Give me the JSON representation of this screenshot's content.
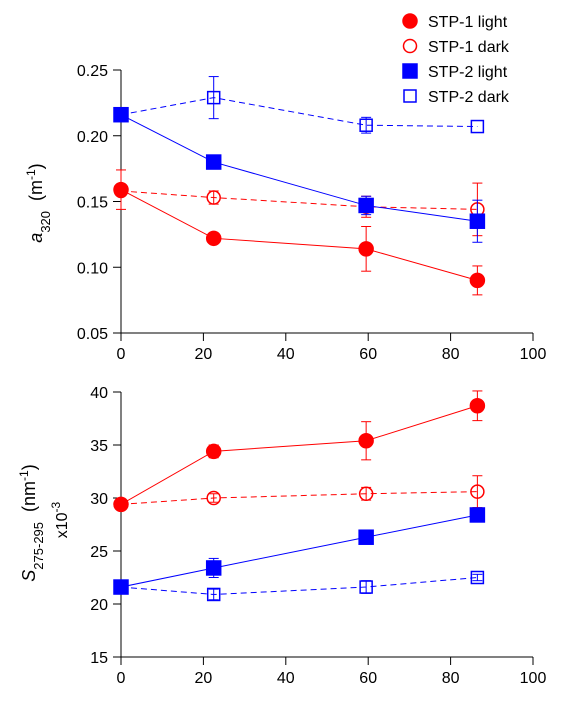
{
  "chart_data": [
    {
      "type": "line",
      "title": "",
      "xlabel": "",
      "ylabel": {
        "main": "a",
        "sub": "320",
        "unit_open": "  (m",
        "unit_sup": "-1",
        "unit_close": ")"
      },
      "xlim": [
        0,
        100
      ],
      "ylim": [
        0.05,
        0.25
      ],
      "xticks": [
        0,
        20,
        40,
        60,
        80,
        100
      ],
      "xtick_labels": [
        "0",
        "20",
        "40",
        "60",
        "80",
        "100"
      ],
      "yticks": [
        0.05,
        0.1,
        0.15,
        0.2,
        0.25
      ],
      "ytick_labels": [
        "0.05",
        "0.10",
        "0.15",
        "0.20",
        "0.25"
      ],
      "grid": false,
      "series": [
        {
          "name": "STP-1 light",
          "color": "#ff0000",
          "marker": "circle",
          "filled": true,
          "dashed": false,
          "x": [
            0,
            22.5,
            59.5,
            86.5
          ],
          "y": [
            0.159,
            0.122,
            0.114,
            0.09
          ],
          "err": [
            0.015,
            0.0,
            0.017,
            0.011
          ]
        },
        {
          "name": "STP-1 dark",
          "color": "#ff0000",
          "marker": "circle",
          "filled": false,
          "dashed": true,
          "x": [
            0,
            22.5,
            59.5,
            86.5
          ],
          "y": [
            0.158,
            0.153,
            0.146,
            0.144
          ],
          "err": [
            0.0,
            0.005,
            0.008,
            0.02
          ]
        },
        {
          "name": "STP-2 light",
          "color": "#0000ff",
          "marker": "square",
          "filled": true,
          "dashed": false,
          "x": [
            0,
            22.5,
            59.5,
            86.5
          ],
          "y": [
            0.216,
            0.18,
            0.147,
            0.135
          ],
          "err": [
            0.0,
            0.0,
            0.007,
            0.016
          ]
        },
        {
          "name": "STP-2 dark",
          "color": "#0000ff",
          "marker": "square",
          "filled": false,
          "dashed": true,
          "x": [
            0,
            22.5,
            59.5,
            86.5
          ],
          "y": [
            0.216,
            0.229,
            0.208,
            0.207
          ],
          "err": [
            0.0,
            0.016,
            0.006,
            0.0
          ]
        }
      ]
    },
    {
      "type": "line",
      "title": "",
      "xlabel": "",
      "ylabel": {
        "main": "S",
        "sub": "275-295",
        "unit_open": "  (nm",
        "unit_sup": "-1",
        "unit_close": ")",
        "multiplier": "x10",
        "multiplier_sup": "-3"
      },
      "xlim": [
        0,
        100
      ],
      "ylim": [
        15,
        40
      ],
      "xticks": [
        0,
        20,
        40,
        60,
        80,
        100
      ],
      "xtick_labels": [
        "0",
        "20",
        "40",
        "60",
        "80",
        "100"
      ],
      "yticks": [
        15,
        20,
        25,
        30,
        35,
        40
      ],
      "ytick_labels": [
        "15",
        "20",
        "25",
        "30",
        "35",
        "40"
      ],
      "grid": false,
      "series": [
        {
          "name": "STP-1 light",
          "color": "#ff0000",
          "marker": "circle",
          "filled": true,
          "dashed": false,
          "x": [
            0,
            22.5,
            59.5,
            86.5
          ],
          "y": [
            29.4,
            34.4,
            35.4,
            38.7
          ],
          "err": [
            0.5,
            0.6,
            1.8,
            1.4
          ]
        },
        {
          "name": "STP-1 dark",
          "color": "#ff0000",
          "marker": "circle",
          "filled": false,
          "dashed": true,
          "x": [
            0,
            22.5,
            59.5,
            86.5
          ],
          "y": [
            29.4,
            30.0,
            30.4,
            30.6
          ],
          "err": [
            0.0,
            0.4,
            0.6,
            1.5
          ]
        },
        {
          "name": "STP-2 light",
          "color": "#0000ff",
          "marker": "square",
          "filled": true,
          "dashed": false,
          "x": [
            0,
            22.5,
            59.5,
            86.5
          ],
          "y": [
            21.6,
            23.4,
            26.3,
            28.4
          ],
          "err": [
            0.0,
            0.9,
            0.0,
            0.0
          ]
        },
        {
          "name": "STP-2 dark",
          "color": "#0000ff",
          "marker": "square",
          "filled": false,
          "dashed": true,
          "x": [
            0,
            22.5,
            59.5,
            86.5
          ],
          "y": [
            21.6,
            20.9,
            21.6,
            22.5
          ],
          "err": [
            0.0,
            0.5,
            0.6,
            0.3
          ]
        }
      ]
    }
  ],
  "legend": {
    "placement": "top-right",
    "items": [
      {
        "label": "STP-1 light",
        "color": "#ff0000",
        "marker": "circle",
        "filled": true
      },
      {
        "label": "STP-1 dark",
        "color": "#ff0000",
        "marker": "circle",
        "filled": false
      },
      {
        "label": "STP-2 light",
        "color": "#0000ff",
        "marker": "square",
        "filled": true
      },
      {
        "label": "STP-2 dark",
        "color": "#0000ff",
        "marker": "square",
        "filled": false
      }
    ]
  }
}
